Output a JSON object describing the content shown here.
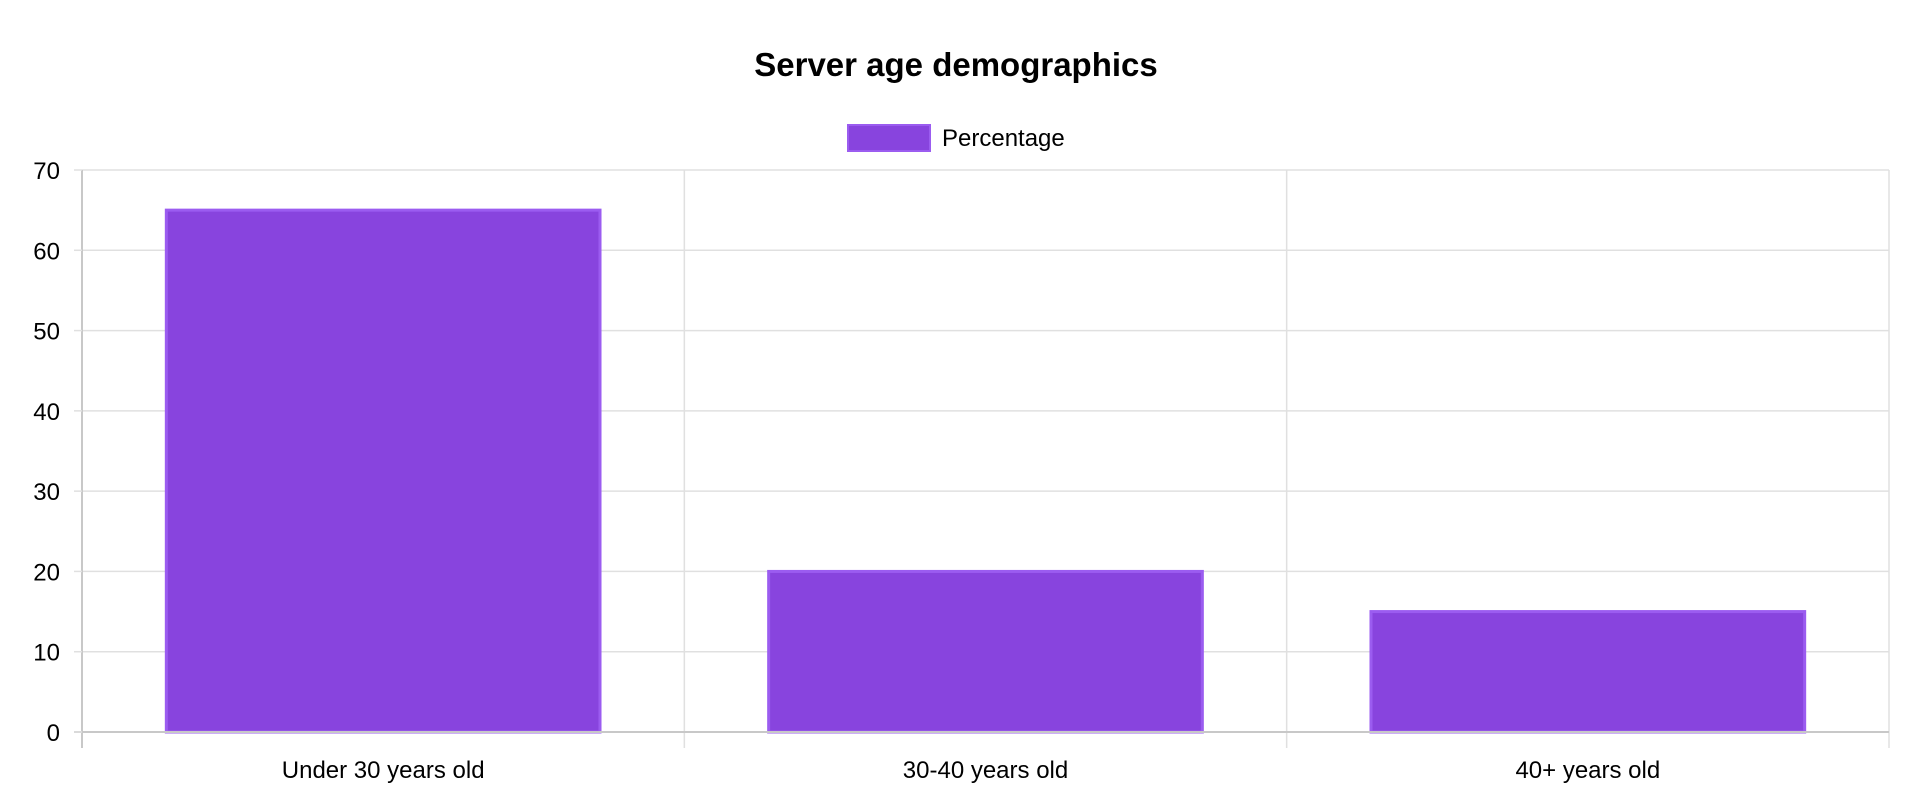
{
  "chart_data": {
    "type": "bar",
    "title": "Server age demographics",
    "categories": [
      "Under 30 years old",
      "30-40 years old",
      "40+ years old"
    ],
    "series": [
      {
        "name": "Percentage",
        "values": [
          65,
          20,
          15
        ],
        "color": "#8844de",
        "border_color": "#9b5cf0"
      }
    ],
    "xlabel": "",
    "ylabel": "",
    "ylim": [
      0,
      70
    ],
    "yticks": [
      "0",
      "10",
      "20",
      "30",
      "40",
      "50",
      "60",
      "70"
    ],
    "grid": true,
    "legend": "top-center",
    "grid_color": "#e0e0e0",
    "axis_color": "#c8c8c8"
  }
}
